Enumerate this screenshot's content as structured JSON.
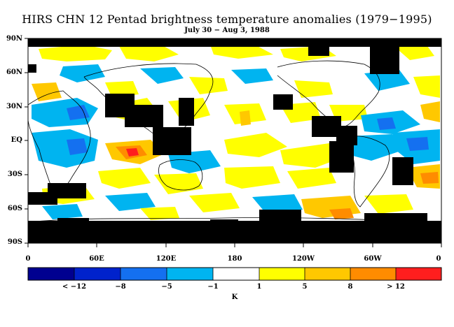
{
  "header": {
    "title": "HIRS CHN 12 Pentad brightness temperature anomalies (1979−1995)",
    "subtitle": "July 30 − Aug 3, 1988"
  },
  "map": {
    "lat_labels": [
      "90N",
      "60N",
      "30N",
      "EQ",
      "30S",
      "60S",
      "90S"
    ],
    "lon_labels": [
      "0",
      "60E",
      "120E",
      "180",
      "120W",
      "60W",
      "0"
    ]
  },
  "colorbar": {
    "unit": "K",
    "colors": [
      "#000090",
      "#0022cc",
      "#1470f0",
      "#00b4f0",
      "#ffffff",
      "#ffff00",
      "#ffc800",
      "#ff8c00",
      "#ff1e1e"
    ],
    "labels": [
      "< −12",
      "−8",
      "−5",
      "−1",
      "1",
      "5",
      "8",
      "> 12"
    ],
    "missing_color": "#000000"
  }
}
